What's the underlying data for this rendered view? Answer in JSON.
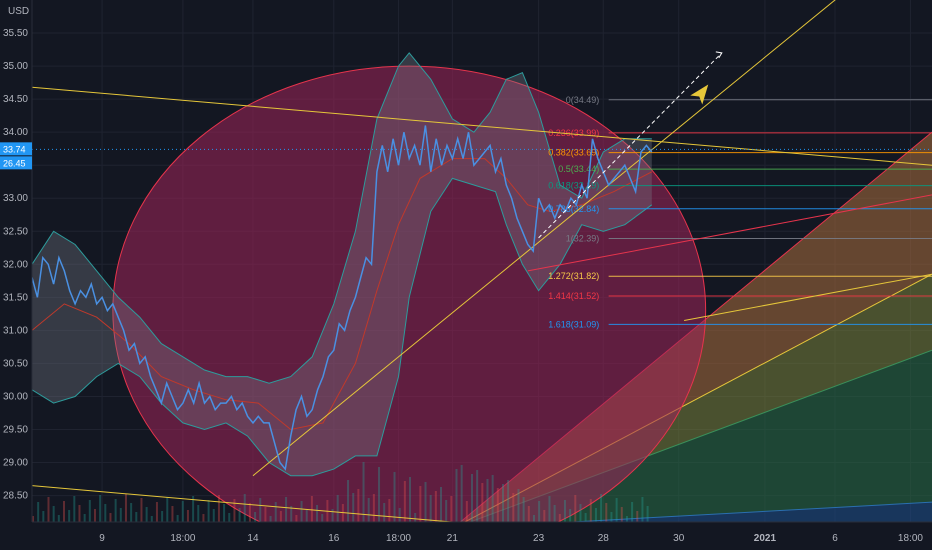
{
  "currency": "USD",
  "chart_data": {
    "type": "line",
    "ylim": [
      28.1,
      36.0
    ],
    "y_ticks": [
      28.5,
      29.0,
      29.5,
      30.0,
      30.5,
      31.0,
      31.5,
      32.0,
      32.5,
      33.0,
      33.5,
      34.0,
      34.5,
      35.0,
      35.5
    ],
    "y_tick_labels": [
      "28.50",
      "29.00",
      "29.50",
      "30.00",
      "30.50",
      "31.00",
      "31.50",
      "32.00",
      "32.50",
      "33.00",
      "33.50",
      "34.00",
      "34.50",
      "35.00",
      "35.50"
    ],
    "x_ticks": [
      {
        "label": "9",
        "t": 13
      },
      {
        "label": "18:00",
        "t": 28
      },
      {
        "label": "14",
        "t": 41
      },
      {
        "label": "16",
        "t": 56
      },
      {
        "label": "18:00",
        "t": 68
      },
      {
        "label": "21",
        "t": 78
      },
      {
        "label": "23",
        "t": 94
      },
      {
        "label": "28",
        "t": 106
      },
      {
        "label": "30",
        "t": 120
      },
      {
        "label": "2021",
        "t": 136
      },
      {
        "label": "6",
        "t": 149
      },
      {
        "label": "18:00",
        "t": 163
      }
    ],
    "last_price": {
      "value": 33.74,
      "label": "33.74",
      "color": "#2196f3"
    },
    "second_price": {
      "label": "26.45",
      "color": "#2196f3"
    },
    "price": [
      [
        0,
        31.8
      ],
      [
        1,
        31.5
      ],
      [
        2,
        32.1
      ],
      [
        3,
        32.0
      ],
      [
        4,
        31.7
      ],
      [
        5,
        32.1
      ],
      [
        6,
        31.9
      ],
      [
        7,
        31.6
      ],
      [
        8,
        31.4
      ],
      [
        9,
        31.6
      ],
      [
        10,
        31.5
      ],
      [
        11,
        31.7
      ],
      [
        12,
        31.4
      ],
      [
        13,
        31.5
      ],
      [
        14,
        31.3
      ],
      [
        15,
        31.4
      ],
      [
        16,
        31.2
      ],
      [
        17,
        31.0
      ],
      [
        18,
        30.7
      ],
      [
        19,
        30.8
      ],
      [
        20,
        30.5
      ],
      [
        21,
        30.6
      ],
      [
        22,
        30.3
      ],
      [
        23,
        30.1
      ],
      [
        24,
        29.9
      ],
      [
        25,
        30.2
      ],
      [
        26,
        30.0
      ],
      [
        27,
        29.8
      ],
      [
        28,
        29.9
      ],
      [
        29,
        30.1
      ],
      [
        30,
        29.9
      ],
      [
        31,
        30.2
      ],
      [
        32,
        29.9
      ],
      [
        33,
        30.0
      ],
      [
        34,
        29.8
      ],
      [
        35,
        29.9
      ],
      [
        36,
        29.9
      ],
      [
        37,
        30.0
      ],
      [
        38,
        29.8
      ],
      [
        39,
        29.9
      ],
      [
        40,
        29.7
      ],
      [
        41,
        29.6
      ],
      [
        42,
        29.7
      ],
      [
        43,
        29.6
      ],
      [
        44,
        29.6
      ],
      [
        45,
        29.3
      ],
      [
        46,
        29.0
      ],
      [
        47,
        28.9
      ],
      [
        48,
        29.4
      ],
      [
        49,
        29.8
      ],
      [
        50,
        30.0
      ],
      [
        51,
        29.7
      ],
      [
        52,
        29.8
      ],
      [
        53,
        30.1
      ],
      [
        54,
        30.3
      ],
      [
        55,
        30.6
      ],
      [
        56,
        30.7
      ],
      [
        57,
        31.1
      ],
      [
        58,
        31.0
      ],
      [
        59,
        31.3
      ],
      [
        60,
        31.5
      ],
      [
        61,
        31.8
      ],
      [
        62,
        32.1
      ],
      [
        63,
        32.0
      ],
      [
        64,
        33.4
      ],
      [
        65,
        33.8
      ],
      [
        66,
        33.4
      ],
      [
        67,
        33.9
      ],
      [
        68,
        33.5
      ],
      [
        69,
        34.0
      ],
      [
        70,
        33.6
      ],
      [
        71,
        33.8
      ],
      [
        72,
        33.5
      ],
      [
        73,
        34.1
      ],
      [
        74,
        33.4
      ],
      [
        75,
        33.9
      ],
      [
        76,
        33.5
      ],
      [
        77,
        33.8
      ],
      [
        78,
        33.6
      ],
      [
        79,
        33.9
      ],
      [
        80,
        33.6
      ],
      [
        81,
        34.0
      ],
      [
        82,
        33.5
      ],
      [
        83,
        33.6
      ],
      [
        84,
        33.7
      ],
      [
        85,
        33.8
      ],
      [
        86,
        33.4
      ],
      [
        87,
        33.6
      ],
      [
        88,
        33.2
      ],
      [
        89,
        33.0
      ],
      [
        90,
        32.7
      ],
      [
        91,
        32.5
      ],
      [
        92,
        32.3
      ],
      [
        93,
        32.2
      ],
      [
        94,
        33.0
      ],
      [
        95,
        32.8
      ],
      [
        96,
        32.9
      ],
      [
        97,
        32.7
      ],
      [
        98,
        32.9
      ],
      [
        99,
        32.8
      ],
      [
        100,
        33.0
      ],
      [
        101,
        32.9
      ],
      [
        102,
        33.2
      ],
      [
        103,
        33.0
      ],
      [
        104,
        33.9
      ],
      [
        105,
        33.6
      ],
      [
        106,
        33.4
      ],
      [
        107,
        33.2
      ],
      [
        108,
        33.3
      ],
      [
        109,
        33.4
      ],
      [
        110,
        33.5
      ],
      [
        111,
        33.3
      ],
      [
        112,
        33.1
      ],
      [
        113,
        33.7
      ],
      [
        114,
        33.8
      ],
      [
        115,
        33.7
      ]
    ],
    "upper_band": [
      [
        0,
        32.0
      ],
      [
        4,
        32.5
      ],
      [
        8,
        32.3
      ],
      [
        12,
        31.9
      ],
      [
        16,
        31.5
      ],
      [
        20,
        31.2
      ],
      [
        24,
        30.8
      ],
      [
        28,
        30.6
      ],
      [
        32,
        30.4
      ],
      [
        36,
        30.3
      ],
      [
        40,
        30.3
      ],
      [
        44,
        30.2
      ],
      [
        48,
        30.3
      ],
      [
        52,
        30.6
      ],
      [
        56,
        31.4
      ],
      [
        60,
        32.5
      ],
      [
        64,
        34.2
      ],
      [
        68,
        35.0
      ],
      [
        70,
        35.2
      ],
      [
        74,
        34.8
      ],
      [
        78,
        34.2
      ],
      [
        82,
        34.0
      ],
      [
        85,
        34.3
      ],
      [
        88,
        34.8
      ],
      [
        91,
        34.9
      ],
      [
        94,
        34.3
      ],
      [
        98,
        33.2
      ],
      [
        102,
        33.0
      ],
      [
        106,
        33.7
      ],
      [
        110,
        33.9
      ],
      [
        115,
        33.9
      ]
    ],
    "lower_band": [
      [
        0,
        30.1
      ],
      [
        4,
        29.9
      ],
      [
        8,
        30.0
      ],
      [
        12,
        30.3
      ],
      [
        16,
        30.5
      ],
      [
        20,
        30.3
      ],
      [
        24,
        29.9
      ],
      [
        28,
        29.6
      ],
      [
        32,
        29.5
      ],
      [
        36,
        29.6
      ],
      [
        40,
        29.4
      ],
      [
        44,
        29.0
      ],
      [
        48,
        28.8
      ],
      [
        52,
        28.8
      ],
      [
        56,
        28.9
      ],
      [
        60,
        29.1
      ],
      [
        64,
        29.1
      ],
      [
        68,
        30.3
      ],
      [
        70,
        31.5
      ],
      [
        74,
        32.8
      ],
      [
        78,
        33.3
      ],
      [
        82,
        33.2
      ],
      [
        86,
        33.1
      ],
      [
        88,
        32.6
      ],
      [
        91,
        32.0
      ],
      [
        94,
        31.6
      ],
      [
        98,
        32.0
      ],
      [
        102,
        32.6
      ],
      [
        106,
        32.5
      ],
      [
        110,
        32.6
      ],
      [
        115,
        32.9
      ]
    ],
    "mid_band": [
      [
        0,
        31.0
      ],
      [
        6,
        31.4
      ],
      [
        12,
        31.2
      ],
      [
        18,
        30.8
      ],
      [
        24,
        30.3
      ],
      [
        30,
        30.1
      ],
      [
        36,
        29.95
      ],
      [
        42,
        29.9
      ],
      [
        48,
        29.5
      ],
      [
        54,
        29.6
      ],
      [
        60,
        30.5
      ],
      [
        64,
        31.6
      ],
      [
        68,
        32.6
      ],
      [
        72,
        33.3
      ],
      [
        78,
        33.6
      ],
      [
        84,
        33.6
      ],
      [
        88,
        33.3
      ],
      [
        92,
        32.9
      ],
      [
        96,
        32.8
      ],
      [
        102,
        32.9
      ],
      [
        108,
        33.1
      ],
      [
        115,
        33.4
      ]
    ],
    "fib_levels": [
      {
        "label": "0(34.49)",
        "value": 34.49,
        "color": "#787b86"
      },
      {
        "label": "0.236(33.99)",
        "value": 33.99,
        "color": "#f23645"
      },
      {
        "label": "0.382(33.69)",
        "value": 33.69,
        "color": "#ff9800"
      },
      {
        "label": "0.5(33.44)",
        "value": 33.44,
        "color": "#4caf50"
      },
      {
        "label": "0.618(33.19)",
        "value": 33.19,
        "color": "#089981"
      },
      {
        "label": "0.786(32.84)",
        "value": 32.84,
        "color": "#2196f3"
      },
      {
        "label": "1(32.39)",
        "value": 32.39,
        "color": "#787b86"
      },
      {
        "label": "1.272(31.82)",
        "value": 31.82,
        "color": "#f7c948"
      },
      {
        "label": "1.414(31.52)",
        "value": 31.52,
        "color": "#f23645"
      },
      {
        "label": "1.618(31.09)",
        "value": 31.09,
        "color": "#2196f3"
      }
    ],
    "trend_lines": [
      {
        "from": [
          0,
          34.68
        ],
        "to": [
          167,
          33.5
        ],
        "color": "#e6c73a"
      },
      {
        "from": [
          41,
          28.8
        ],
        "to": [
          167,
          37.2
        ],
        "color": "#e6c73a"
      },
      {
        "from": [
          0,
          28.65
        ],
        "to": [
          85,
          28.05
        ],
        "color": "#e6c73a"
      },
      {
        "from": [
          92,
          31.9
        ],
        "to": [
          167,
          33.05
        ],
        "color": "#e6344c"
      },
      {
        "from": [
          121,
          31.15
        ],
        "to": [
          167,
          31.85
        ],
        "color": "#e6c73a"
      }
    ],
    "ellipse": {
      "cx": 70,
      "cy": 31.3,
      "rx": 55,
      "ry": 3.7,
      "fill": "#a0245a"
    },
    "fan_origin": [
      78,
      28.0
    ],
    "fan_rays": [
      {
        "to": [
          167,
          34.0
        ],
        "color": "#e6344c"
      },
      {
        "to": [
          167,
          31.85
        ],
        "color": "#e6c73a"
      },
      {
        "to": [
          167,
          30.7
        ],
        "color": "#3a8f5a"
      },
      {
        "to": [
          167,
          28.4
        ],
        "color": "#2a6fb0"
      }
    ],
    "projection_arrow": {
      "from": [
        94,
        32.4
      ],
      "to": [
        128,
        35.2
      ]
    },
    "marker_point": [
      124,
      34.6
    ],
    "volume_bars": 120
  }
}
